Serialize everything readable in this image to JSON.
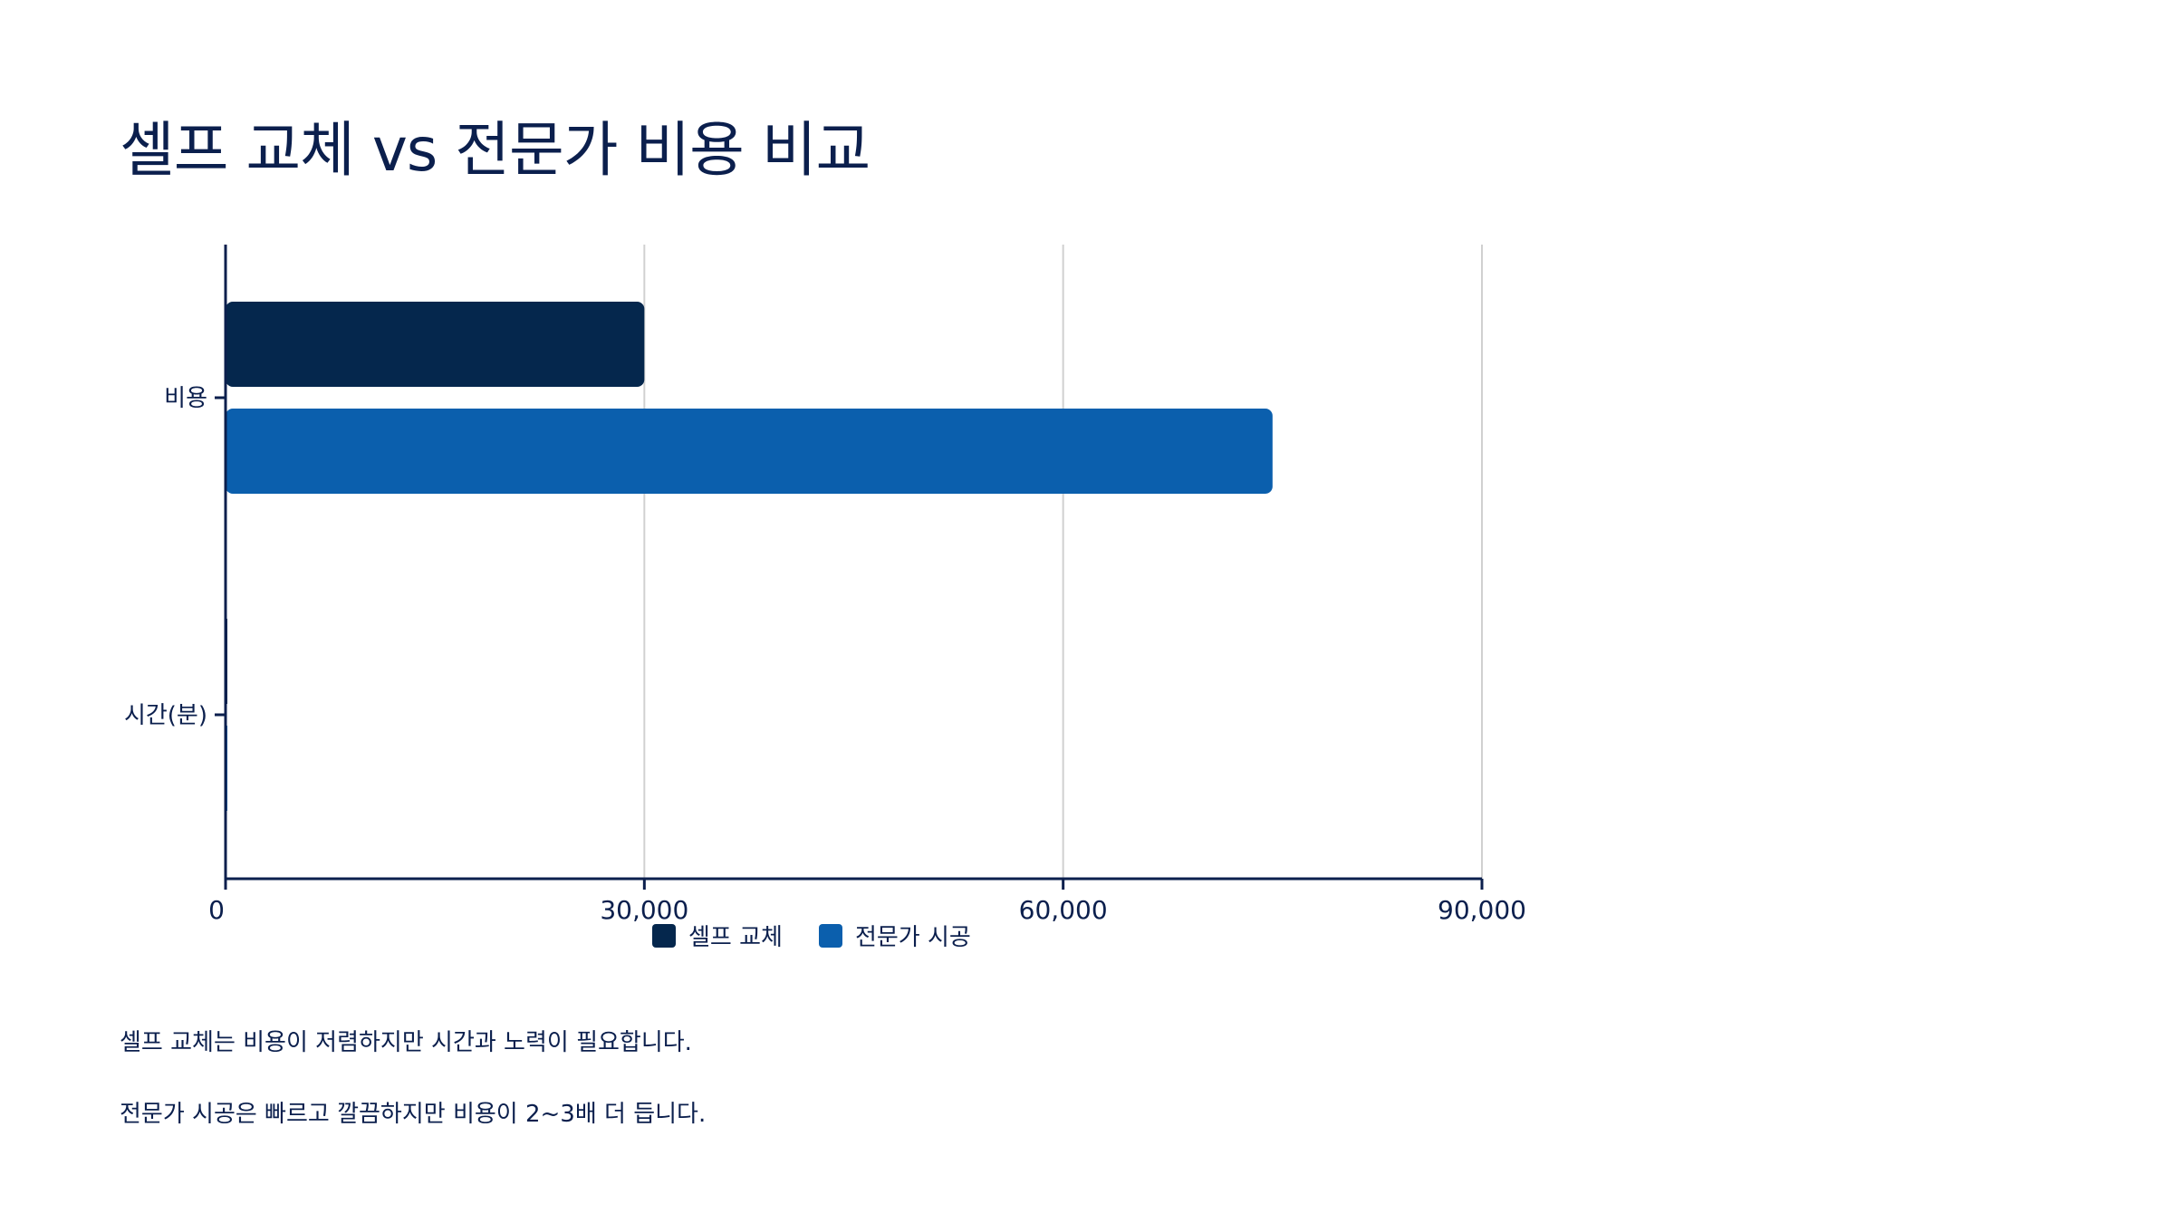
{
  "page": {
    "title": "셀프 교체 vs 전문가 비용 비교",
    "notes": [
      "셀프 교체는 비용이 저렴하지만 시간과 노력이 필요합니다.",
      "전문가 시공은 빠르고 깔끔하지만 비용이 2~3배 더 듭니다."
    ]
  },
  "colors": {
    "text": "#0b1f4d",
    "axis": "#0b1f4d",
    "grid": "#d0d0d0",
    "series_self": "#05274d",
    "series_pro": "#0b5fad"
  },
  "chart_data": {
    "type": "bar",
    "orientation": "horizontal",
    "categories": [
      "비용",
      "시간(분)"
    ],
    "series": [
      {
        "name": "셀프 교체",
        "values": [
          30000,
          120
        ],
        "color": "#05274d"
      },
      {
        "name": "전문가 시공",
        "values": [
          75000,
          30
        ],
        "color": "#0b5fad"
      }
    ],
    "xlim": [
      0,
      90000
    ],
    "xticks": [
      0,
      30000,
      60000,
      90000
    ],
    "xtick_labels": [
      "0",
      "30,000",
      "60,000",
      "90,000"
    ],
    "grid": true,
    "legend_position": "bottom"
  }
}
